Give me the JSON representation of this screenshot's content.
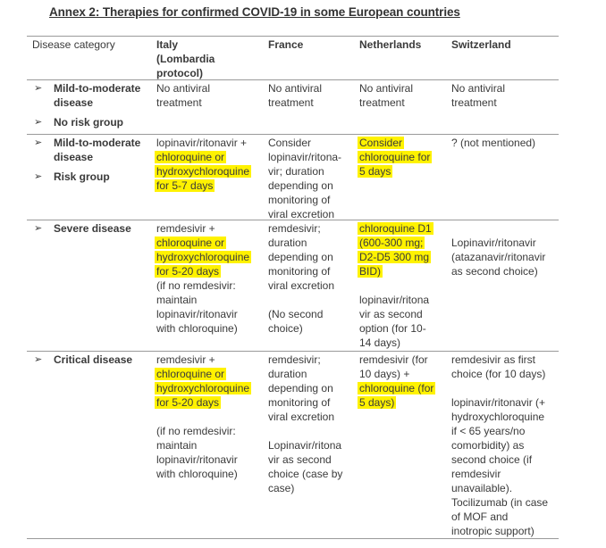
{
  "title": "Annex 2: Therapies for confirmed COVID-19 in some European countries",
  "colors": {
    "highlight": "#fff200",
    "rule": "#9a9a9a"
  },
  "bullet_icon": "arrowhead-bullet",
  "headers": [
    [
      "Disease category"
    ],
    [
      "Italy",
      "(Lombardia",
      "protocol)"
    ],
    [
      "France"
    ],
    [
      "Netherlands"
    ],
    [
      "Switzerland"
    ]
  ],
  "rows": [
    {
      "category": [
        [
          "Mild-to-moderate",
          "disease"
        ],
        [
          "No risk group"
        ]
      ],
      "cells": [
        [
          {
            "t": "No antiviral"
          },
          {
            "t": "treatment"
          }
        ],
        [
          {
            "t": "No antiviral"
          },
          {
            "t": "treatment"
          }
        ],
        [
          {
            "t": "No antiviral"
          },
          {
            "t": "treatment"
          }
        ],
        [
          {
            "t": "No antiviral"
          },
          {
            "t": "treatment"
          }
        ]
      ]
    },
    {
      "category": [
        [
          "Mild-to-moderate",
          "disease"
        ],
        [
          "Risk group"
        ]
      ],
      "cells": [
        [
          {
            "t": "lopinavir/ritonavir +"
          },
          {
            "t": "chloroquine or",
            "hl": true
          },
          {
            "t": "hydroxychloroquine",
            "hl": true
          },
          {
            "t": "for 5-7 days",
            "hl": true
          }
        ],
        [
          {
            "t": "Consider"
          },
          {
            "t": "lopinavir/ritona-"
          },
          {
            "t": "vir; duration"
          },
          {
            "t": "depending on"
          },
          {
            "t": "monitoring of"
          },
          {
            "t": "viral excretion"
          }
        ],
        [
          {
            "t": "Consider",
            "hl": true
          },
          {
            "t": "chloroquine for",
            "hl": true
          },
          {
            "t": "5 days",
            "hl": true
          }
        ],
        [
          {
            "t": "? (not mentioned)"
          }
        ]
      ]
    },
    {
      "category": [
        [
          "Severe disease"
        ]
      ],
      "cells": [
        [
          {
            "t": "remdesivir +"
          },
          {
            "t": "chloroquine or",
            "hl": true
          },
          {
            "t": "hydroxychloroquine",
            "hl": true
          },
          {
            "t": "for 5-20 days",
            "hl": true
          },
          {
            "t": "(if no remdesivir:"
          },
          {
            "t": "maintain"
          },
          {
            "t": "lopinavir/ritonavir"
          },
          {
            "t": "with chloroquine)"
          }
        ],
        [
          {
            "t": "remdesivir;"
          },
          {
            "t": "duration"
          },
          {
            "t": "depending on"
          },
          {
            "t": "monitoring of"
          },
          {
            "t": "viral excretion"
          },
          {
            "t": ""
          },
          {
            "t": "(No second"
          },
          {
            "t": "choice)"
          }
        ],
        [
          {
            "t": "chloroquine D1",
            "hl": true
          },
          {
            "t": "(600-300 mg;",
            "hl": true
          },
          {
            "t": "D2-D5 300 mg",
            "hl": true
          },
          {
            "t": "BID)",
            "hl": true
          },
          {
            "t": ""
          },
          {
            "t": "lopinavir/ritona"
          },
          {
            "t": "vir as second"
          },
          {
            "t": "option (for 10-"
          },
          {
            "t": "14 days)"
          }
        ],
        [
          {
            "t": ""
          },
          {
            "t": "Lopinavir/ritonavir"
          },
          {
            "t": "(atazanavir/ritonavir"
          },
          {
            "t": "as second choice)"
          }
        ]
      ]
    },
    {
      "category": [
        [
          "Critical disease"
        ]
      ],
      "cells": [
        [
          {
            "t": "remdesivir +"
          },
          {
            "t": "chloroquine or",
            "hl": true
          },
          {
            "t": "hydroxychloroquine",
            "hl": true
          },
          {
            "t": "for 5-20 days",
            "hl": true
          },
          {
            "t": ""
          },
          {
            "t": "(if no remdesivir:"
          },
          {
            "t": "maintain"
          },
          {
            "t": "lopinavir/ritonavir"
          },
          {
            "t": "with chloroquine)"
          }
        ],
        [
          {
            "t": "remdesivir;"
          },
          {
            "t": "duration"
          },
          {
            "t": "depending on"
          },
          {
            "t": "monitoring of"
          },
          {
            "t": "viral excretion"
          },
          {
            "t": ""
          },
          {
            "t": "Lopinavir/ritona"
          },
          {
            "t": "vir as second"
          },
          {
            "t": "choice (case by"
          },
          {
            "t": "case)"
          }
        ],
        [
          {
            "t": "remdesivir (for"
          },
          {
            "t": "10 days) +"
          },
          {
            "t": "chloroquine (for",
            "hl": true
          },
          {
            "t": "5 days)",
            "hl": true
          }
        ],
        [
          {
            "t": "remdesivir as first"
          },
          {
            "t": "choice (for 10 days)"
          },
          {
            "t": ""
          },
          {
            "t": "lopinavir/ritonavir (+"
          },
          {
            "t": "hydroxychloroquine"
          },
          {
            "t": "if < 65 years/no"
          },
          {
            "t": "comorbidity)  as"
          },
          {
            "t": "second choice (if"
          },
          {
            "t": "remdesivir"
          },
          {
            "t": "unavailable)."
          },
          {
            "t": "Tocilizumab (in case"
          },
          {
            "t": "of MOF and"
          },
          {
            "t": "inotropic support)"
          }
        ]
      ]
    }
  ]
}
